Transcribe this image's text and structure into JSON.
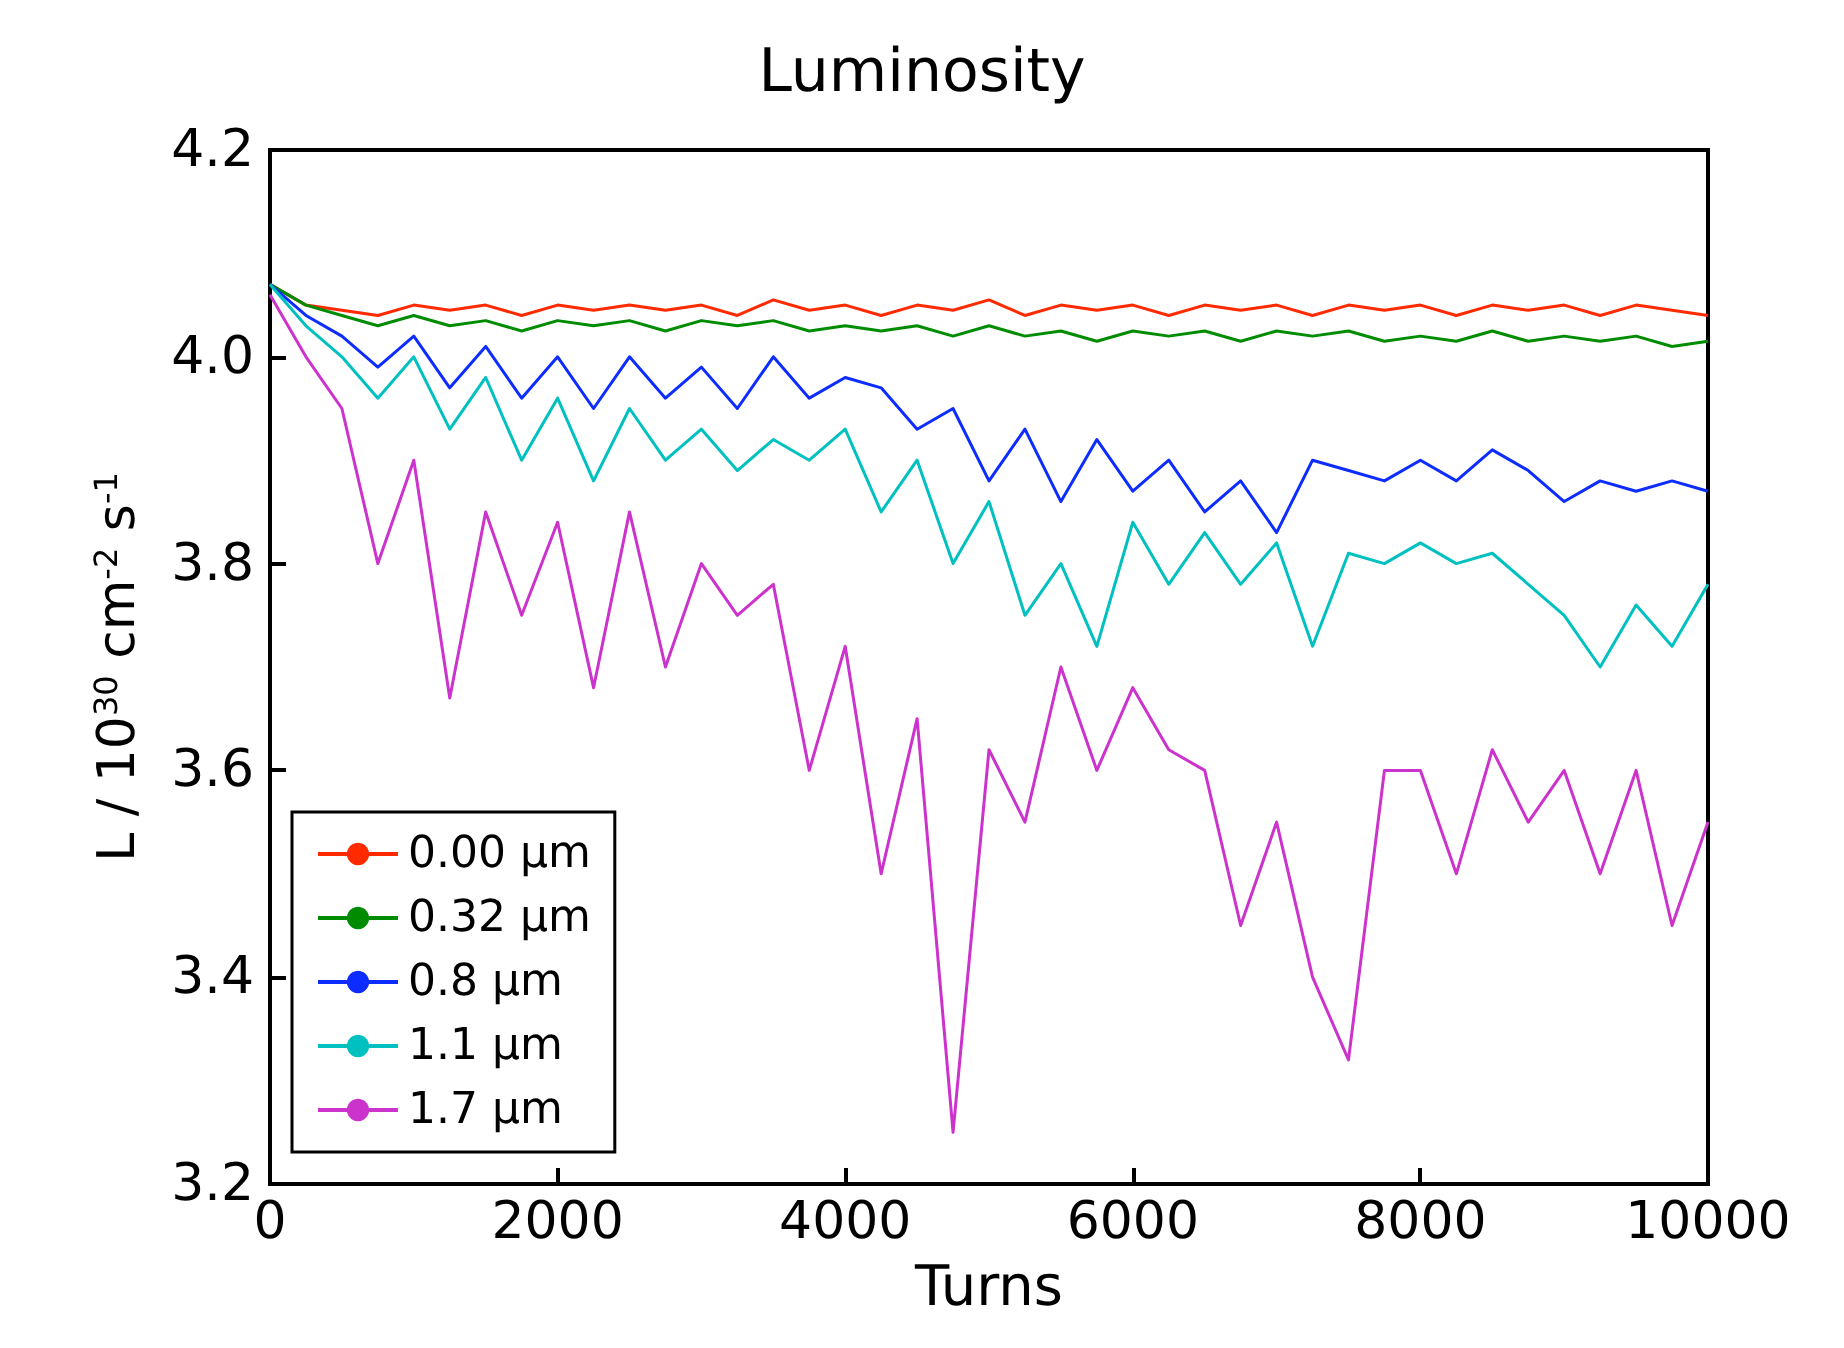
{
  "chart_data": {
    "type": "line",
    "title": "Luminosity",
    "xlabel": "Turns",
    "ylabel": "L / 10$^{30}$ cm$^{-2}$ s$^{-1}$",
    "x": [
      0,
      250,
      500,
      750,
      1000,
      1250,
      1500,
      1750,
      2000,
      2250,
      2500,
      2750,
      3000,
      3250,
      3500,
      3750,
      4000,
      4250,
      4500,
      4750,
      5000,
      5250,
      5500,
      5750,
      6000,
      6250,
      6500,
      6750,
      7000,
      7250,
      7500,
      7750,
      8000,
      8250,
      8500,
      8750,
      9000,
      9250,
      9500,
      9750,
      10000
    ],
    "series": [
      {
        "name": "0.00 μm",
        "color": "#ff2a00",
        "values": [
          4.07,
          4.05,
          4.045,
          4.04,
          4.05,
          4.045,
          4.05,
          4.04,
          4.05,
          4.045,
          4.05,
          4.045,
          4.05,
          4.04,
          4.055,
          4.045,
          4.05,
          4.04,
          4.05,
          4.045,
          4.055,
          4.04,
          4.05,
          4.045,
          4.05,
          4.04,
          4.05,
          4.045,
          4.05,
          4.04,
          4.05,
          4.045,
          4.05,
          4.04,
          4.05,
          4.045,
          4.05,
          4.04,
          4.05,
          4.045,
          4.04
        ]
      },
      {
        "name": "0.32 μm",
        "color": "#008c00",
        "values": [
          4.07,
          4.05,
          4.04,
          4.03,
          4.04,
          4.03,
          4.035,
          4.025,
          4.035,
          4.03,
          4.035,
          4.025,
          4.035,
          4.03,
          4.035,
          4.025,
          4.03,
          4.025,
          4.03,
          4.02,
          4.03,
          4.02,
          4.025,
          4.015,
          4.025,
          4.02,
          4.025,
          4.015,
          4.025,
          4.02,
          4.025,
          4.015,
          4.02,
          4.015,
          4.025,
          4.015,
          4.02,
          4.015,
          4.02,
          4.01,
          4.015
        ]
      },
      {
        "name": "0.8 μm",
        "color": "#0d2cff",
        "values": [
          4.07,
          4.04,
          4.02,
          3.99,
          4.02,
          3.97,
          4.01,
          3.96,
          4.0,
          3.95,
          4.0,
          3.96,
          3.99,
          3.95,
          4.0,
          3.96,
          3.98,
          3.97,
          3.93,
          3.95,
          3.88,
          3.93,
          3.86,
          3.92,
          3.87,
          3.9,
          3.85,
          3.88,
          3.83,
          3.9,
          3.89,
          3.88,
          3.9,
          3.88,
          3.91,
          3.89,
          3.86,
          3.88,
          3.87,
          3.88,
          3.87
        ]
      },
      {
        "name": "1.1 μm",
        "color": "#00c0c0",
        "values": [
          4.07,
          4.03,
          4.0,
          3.96,
          4.0,
          3.93,
          3.98,
          3.9,
          3.96,
          3.88,
          3.95,
          3.9,
          3.93,
          3.89,
          3.92,
          3.9,
          3.93,
          3.85,
          3.9,
          3.8,
          3.86,
          3.75,
          3.8,
          3.72,
          3.84,
          3.78,
          3.83,
          3.78,
          3.82,
          3.72,
          3.81,
          3.8,
          3.82,
          3.8,
          3.81,
          3.78,
          3.75,
          3.7,
          3.76,
          3.72,
          3.78
        ]
      },
      {
        "name": "1.7 μm",
        "color": "#cc33cc",
        "values": [
          4.06,
          4.0,
          3.95,
          3.8,
          3.9,
          3.67,
          3.85,
          3.75,
          3.84,
          3.68,
          3.85,
          3.7,
          3.8,
          3.75,
          3.78,
          3.6,
          3.72,
          3.5,
          3.65,
          3.25,
          3.62,
          3.55,
          3.7,
          3.6,
          3.68,
          3.62,
          3.6,
          3.45,
          3.55,
          3.4,
          3.32,
          3.6,
          3.6,
          3.5,
          3.62,
          3.55,
          3.6,
          3.5,
          3.6,
          3.45,
          3.55
        ]
      }
    ],
    "xlim": [
      0,
      10000
    ],
    "xticks": [
      0,
      2000,
      4000,
      6000,
      8000,
      10000
    ],
    "ylim": [
      3.2,
      4.2
    ],
    "yticks": [
      3.2,
      3.4,
      3.6,
      3.8,
      {
        "value": 4.0,
        "label": "4.0"
      },
      4.2
    ],
    "grid": false,
    "legend": "bottom left",
    "marker": "none",
    "line_style": "solid"
  }
}
